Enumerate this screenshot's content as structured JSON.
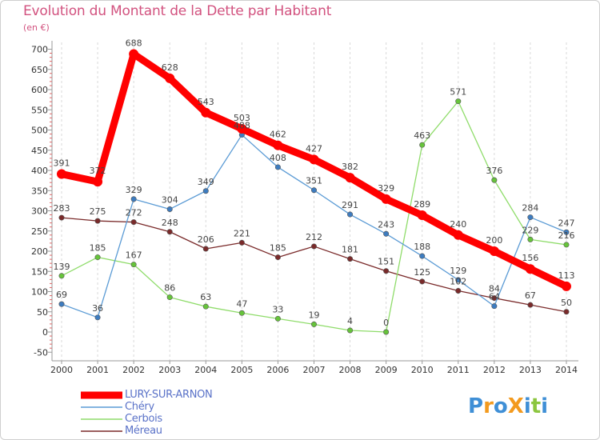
{
  "title": "Evolution du Montant de la Dette par Habitant",
  "subtitle": "(en €)",
  "chart_data": {
    "type": "line",
    "categories": [
      "2000",
      "2001",
      "2002",
      "2003",
      "2004",
      "2005",
      "2006",
      "2007",
      "2008",
      "2009",
      "2010",
      "2011",
      "2012",
      "2013",
      "2014"
    ],
    "ylim": [
      -50,
      700
    ],
    "yticks": [
      -50,
      0,
      50,
      100,
      150,
      200,
      250,
      300,
      350,
      400,
      450,
      500,
      550,
      600,
      650,
      700
    ],
    "grid": "vertical dashed",
    "series": [
      {
        "name": "LURY-SUR-ARNON",
        "color": "#ff0000",
        "width": 9,
        "marker": 6,
        "values": [
          391,
          372,
          688,
          628,
          543,
          503,
          462,
          427,
          382,
          329,
          289,
          240,
          200,
          156,
          113
        ]
      },
      {
        "name": "Chéry",
        "color": "#5b9bd5",
        "dot": "#3d7cc0",
        "width": 1.3,
        "marker": 3.2,
        "values": [
          69,
          36,
          329,
          304,
          349,
          488,
          408,
          351,
          291,
          243,
          188,
          129,
          64,
          284,
          247
        ]
      },
      {
        "name": "Cerbois",
        "color": "#8fdc6a",
        "dot": "#66c43a",
        "width": 1.3,
        "marker": 3.2,
        "values": [
          139,
          185,
          167,
          86,
          63,
          47,
          33,
          19,
          4,
          0,
          463,
          571,
          376,
          229,
          216
        ]
      },
      {
        "name": "Méreau",
        "color": "#7a2a2a",
        "dot": "#7a2a2a",
        "width": 1.3,
        "marker": 3.2,
        "values": [
          283,
          275,
          272,
          248,
          206,
          221,
          185,
          212,
          181,
          151,
          125,
          102,
          84,
          67,
          50
        ]
      }
    ]
  },
  "logo": {
    "text": "ProXiti"
  }
}
